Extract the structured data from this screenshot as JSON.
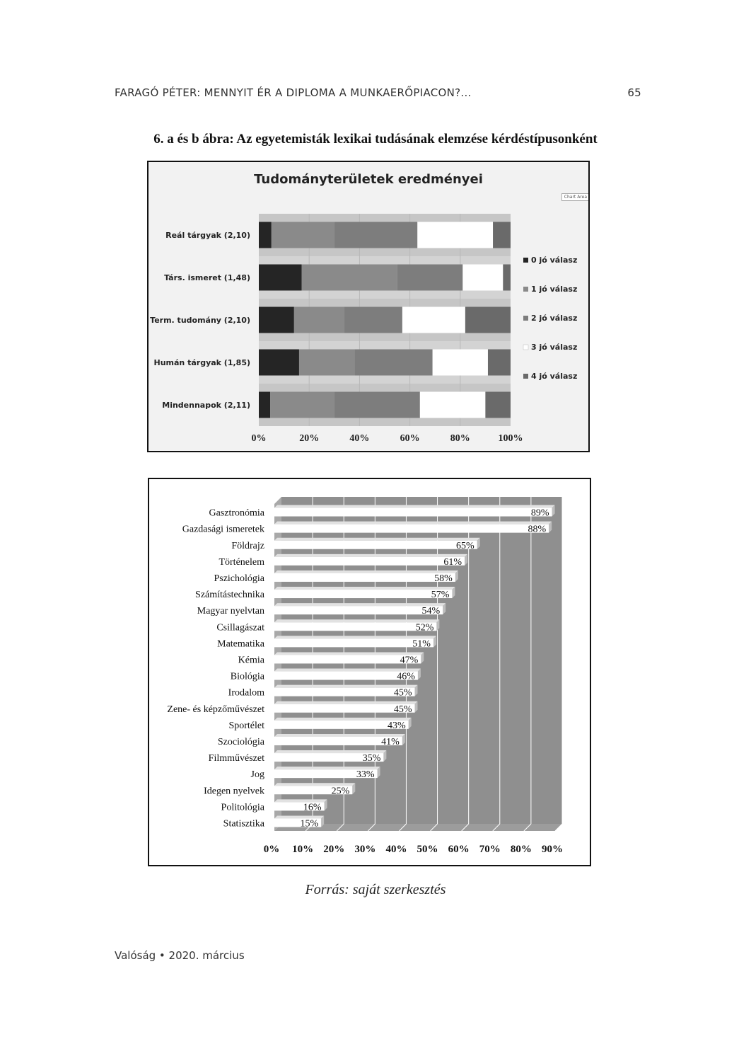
{
  "header": {
    "running_title": "FARAGÓ PÉTER: MENNYIT ÉR A DIPLOMA A MUNKAERŐPIACON?...",
    "page_number": "65"
  },
  "figure_title": "6. a és b ábra: Az egyetemisták lexikai tudásának elemzése kérdéstípusonként",
  "chart_area_label": "Chart Area",
  "source": "Forrás: saját szerkesztés",
  "footer": "Valóság • 2020. március",
  "chart_data": [
    {
      "type": "bar",
      "orientation": "horizontal",
      "stacked": true,
      "title": "Tudományterületek eredményei",
      "categories": [
        "Reál tárgyak (2,10)",
        "Társ. ismeret (1,48)",
        "Term. tudomány (2,10)",
        "Humán tárgyak (1,85)",
        "Mindennapok (2,11)"
      ],
      "series": [
        {
          "name": "0 jó válasz",
          "values": [
            5,
            17,
            14,
            16,
            4.5
          ]
        },
        {
          "name": "1 jó válasz",
          "values": [
            25,
            38,
            20,
            22,
            25.5
          ]
        },
        {
          "name": "2 jó válasz",
          "values": [
            33,
            26,
            23,
            31,
            34
          ]
        },
        {
          "name": "3 jó válasz",
          "values": [
            30,
            16,
            25,
            22,
            26
          ]
        },
        {
          "name": "4 jó válasz",
          "values": [
            7,
            3,
            18,
            9,
            10
          ]
        }
      ],
      "colors": [
        "#252525",
        "#8a8a8a",
        "#7d7d7d",
        "#ffffff",
        "#6a6a6a"
      ],
      "xticks": [
        "0%",
        "20%",
        "40%",
        "60%",
        "80%",
        "100%"
      ],
      "xlim": [
        0,
        100
      ],
      "legend_position": "right"
    },
    {
      "type": "bar",
      "orientation": "horizontal",
      "categories": [
        "Gasztronómia",
        "Gazdasági ismeretek",
        "Földrajz",
        "Történelem",
        "Pszichológia",
        "Számítástechnika",
        "Magyar nyelvtan",
        "Csillagászat",
        "Matematika",
        "Kémia",
        "Biológia",
        "Irodalom",
        "Zene- és képzőművészet",
        "Sportélet",
        "Szociológia",
        "Filmművészet",
        "Jog",
        "Idegen nyelvek",
        "Politológia",
        "Statisztika"
      ],
      "values": [
        89,
        88,
        65,
        61,
        58,
        57,
        54,
        52,
        51,
        47,
        46,
        45,
        45,
        43,
        41,
        35,
        33,
        25,
        16,
        15
      ],
      "value_labels": [
        "89%",
        "88%",
        "65%",
        "61%",
        "58%",
        "57%",
        "54%",
        "52%",
        "51%",
        "47%",
        "46%",
        "45%",
        "45%",
        "43%",
        "41%",
        "35%",
        "33%",
        "25%",
        "16%",
        "15%"
      ],
      "xticks": [
        "0%",
        "10%",
        "20%",
        "30%",
        "40%",
        "50%",
        "60%",
        "70%",
        "80%",
        "90%"
      ],
      "xlim": [
        0,
        90
      ],
      "bar_color": "#ffffff",
      "background_color": "#8f8f8f"
    }
  ]
}
